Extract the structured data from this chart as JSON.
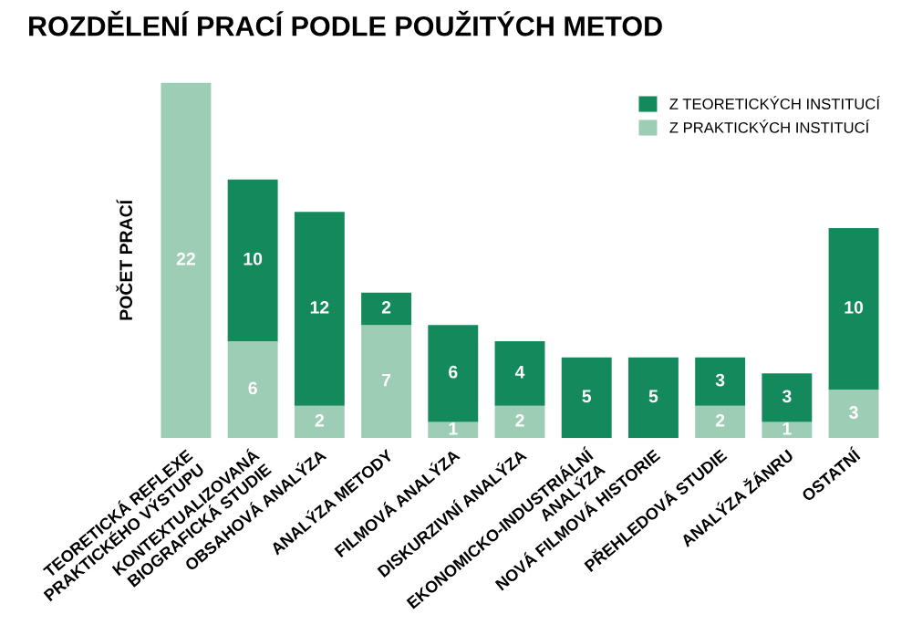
{
  "chart_data": {
    "type": "bar",
    "title": "ROZDĚLENÍ PRACÍ PODLE POUŽITÝCH METOD",
    "ylabel": "POČET PRACÍ",
    "categories": [
      "TEORETICKÁ REFLEXE\nPRAKTICKÉHO VÝSTUPU",
      "KONTEXTUALIZOVANÁ\nBIOGRAFICKÁ STUDIE",
      "OBSAHOVÁ ANALÝZA",
      "ANALÝZA METODY",
      "FILMOVÁ ANALÝZA",
      "DISKURZIVNÍ ANALÝZA",
      "EKONOMICKO-INDUSTRIÁLNÍ\nANALÝZA",
      "NOVÁ FILMOVÁ HISTORIE",
      "PŘEHLEDOVÁ STUDIE",
      "ANALÝZA ŽÁNRU",
      "OSTATNÍ"
    ],
    "stacked": true,
    "data_labels": true,
    "legend": "top right",
    "grid": false,
    "series": [
      {
        "name": "Z PRAKTICKÝCH INSTITUCÍ",
        "color": "#9dcdb4",
        "values": [
          22,
          6,
          2,
          7,
          1,
          2,
          null,
          null,
          2,
          1,
          3
        ]
      },
      {
        "name": "Z TEORETICKÝCH INSTITUCÍ",
        "color": "#148a5c",
        "values": [
          null,
          10,
          12,
          2,
          6,
          4,
          5,
          5,
          3,
          3,
          10
        ]
      }
    ]
  }
}
